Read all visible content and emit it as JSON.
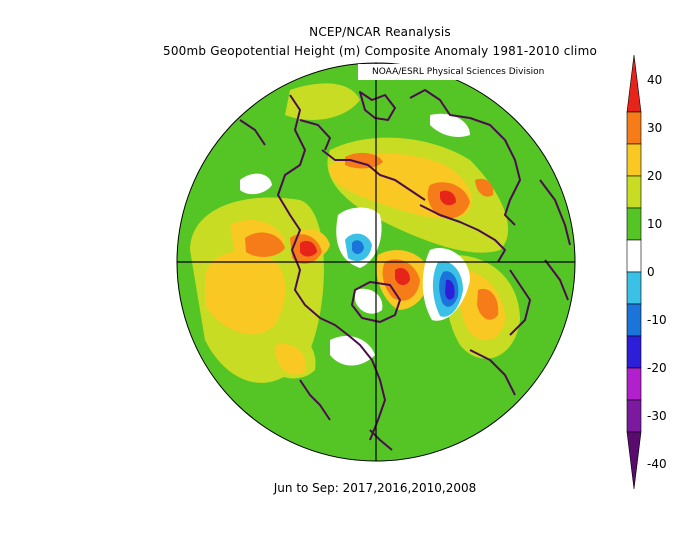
{
  "titles": {
    "line1": "NCEP/NCAR Reanalysis",
    "line2": "500mb Geopotential Height (m) Composite Anomaly 1981-2010 climo"
  },
  "credit": "NOAA/ESRL Physical Sciences Division",
  "footer": "Jun to Sep: 2017,2016,2010,2008",
  "colorbar": {
    "labels": [
      "40",
      "30",
      "20",
      "10",
      "0",
      "-10",
      "-20",
      "-30",
      "-40"
    ],
    "colors": [
      "#e6241a",
      "#f57c18",
      "#fac822",
      "#c9dc24",
      "#55c525",
      "#ffffff",
      "#3bc0e6",
      "#1a74d9",
      "#2d1ed9",
      "#b21fcc",
      "#7c1a9f",
      "#5a0b6e"
    ]
  },
  "map": {
    "projection": "north-polar-stereographic",
    "palette": {
      "background": "#55c525",
      "light_green": "#c9dc24",
      "yellow": "#fac822",
      "orange": "#f57c18",
      "red": "#e6241a",
      "white": "#ffffff",
      "cyan": "#3bc0e6",
      "blue": "#1a74d9",
      "dark_blue": "#2d1ed9",
      "coast": "#4a0e4e"
    }
  }
}
